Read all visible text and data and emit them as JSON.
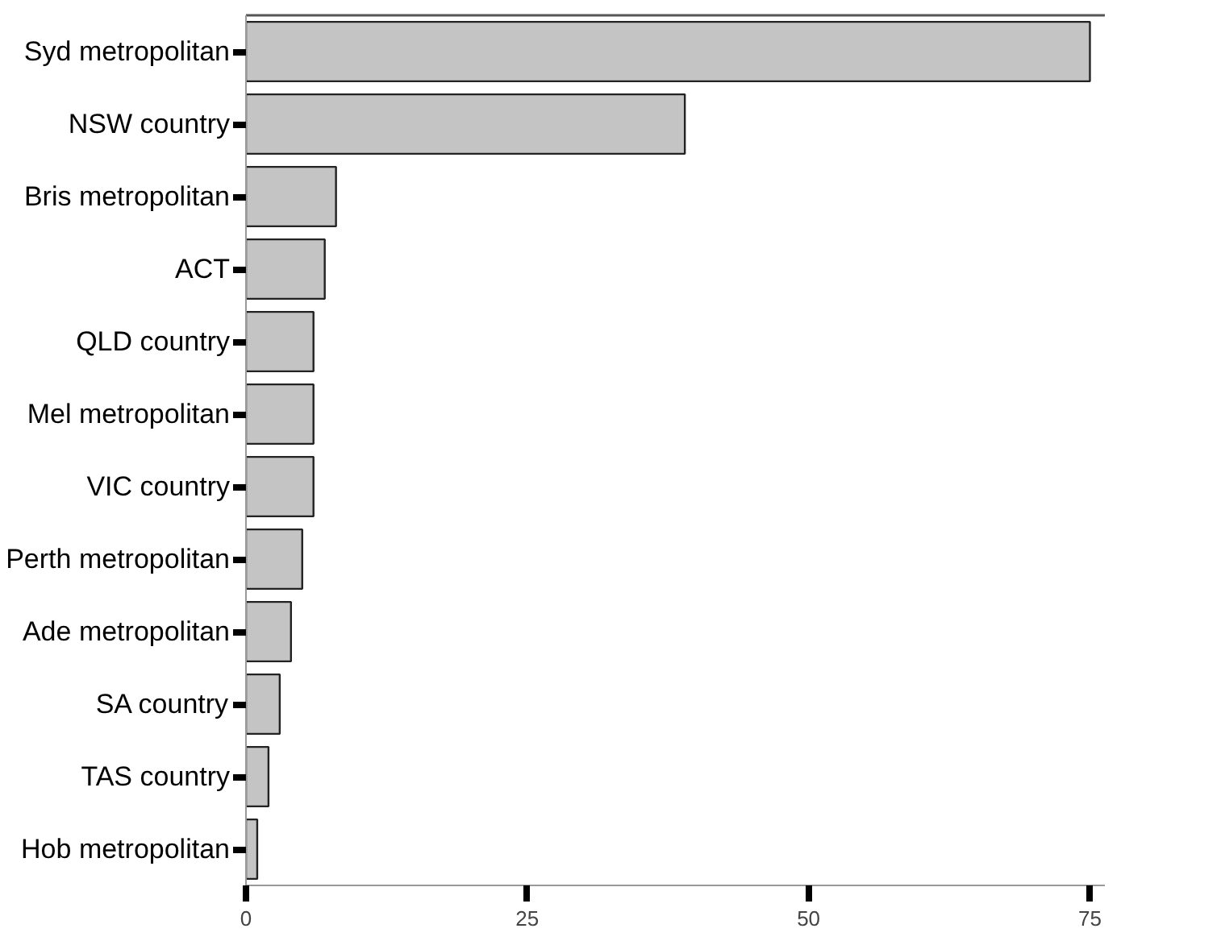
{
  "chart_data": {
    "type": "bar",
    "orientation": "horizontal",
    "categories": [
      "Syd metropolitan",
      "NSW country",
      "Bris metropolitan",
      "ACT",
      "QLD country",
      "Mel metropolitan",
      "VIC country",
      "Perth metropolitan",
      "Ade metropolitan",
      "SA country",
      "TAS country",
      "Hob metropolitan"
    ],
    "values": [
      75,
      39,
      8,
      7,
      6,
      6,
      6,
      5,
      4,
      3,
      2,
      1
    ],
    "color": "#c4c4c4",
    "xlim": [
      0,
      76.4
    ],
    "xticks": [
      0,
      25,
      50,
      75
    ]
  }
}
